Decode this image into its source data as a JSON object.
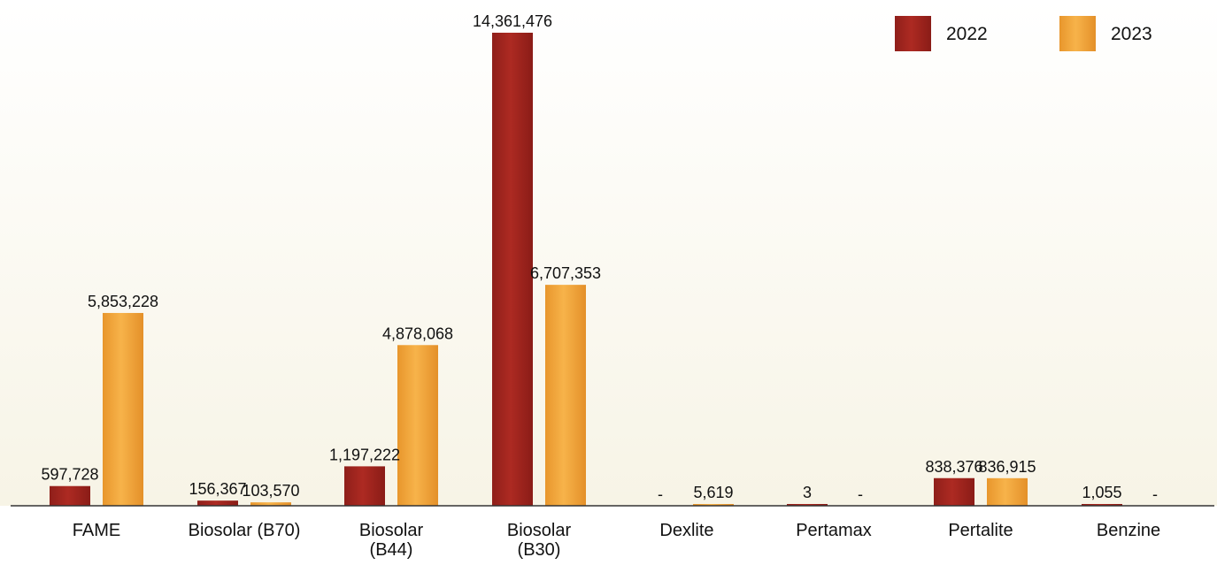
{
  "chart_data": {
    "type": "bar",
    "title": "",
    "xlabel": "",
    "ylabel": "",
    "ylim": [
      0,
      14361476
    ],
    "grid": false,
    "legend_position": "top-right",
    "categories": [
      "FAME",
      "Biosolar (B70)",
      "Biosolar\n(B44)",
      "Biosolar\n(B30)",
      "Dexlite",
      "Pertamax",
      "Pertalite",
      "Benzine"
    ],
    "series": [
      {
        "name": "2022",
        "color": "#A52A22",
        "values": [
          597728,
          156367,
          1197222,
          14361476,
          0,
          3,
          838376,
          1055
        ],
        "labels": [
          "597,728",
          "156,367",
          "1,197,222",
          "14,361,476",
          "-",
          "3",
          "838,376",
          "1,055"
        ]
      },
      {
        "name": "2023",
        "color": "#F5AE45",
        "values": [
          5853228,
          103570,
          4878068,
          6707353,
          5619,
          0,
          836915,
          0
        ],
        "labels": [
          "5,853,228",
          "103,570",
          "4,878,068",
          "6,707,353",
          "5,619",
          "-",
          "836,915",
          "-"
        ]
      }
    ]
  }
}
